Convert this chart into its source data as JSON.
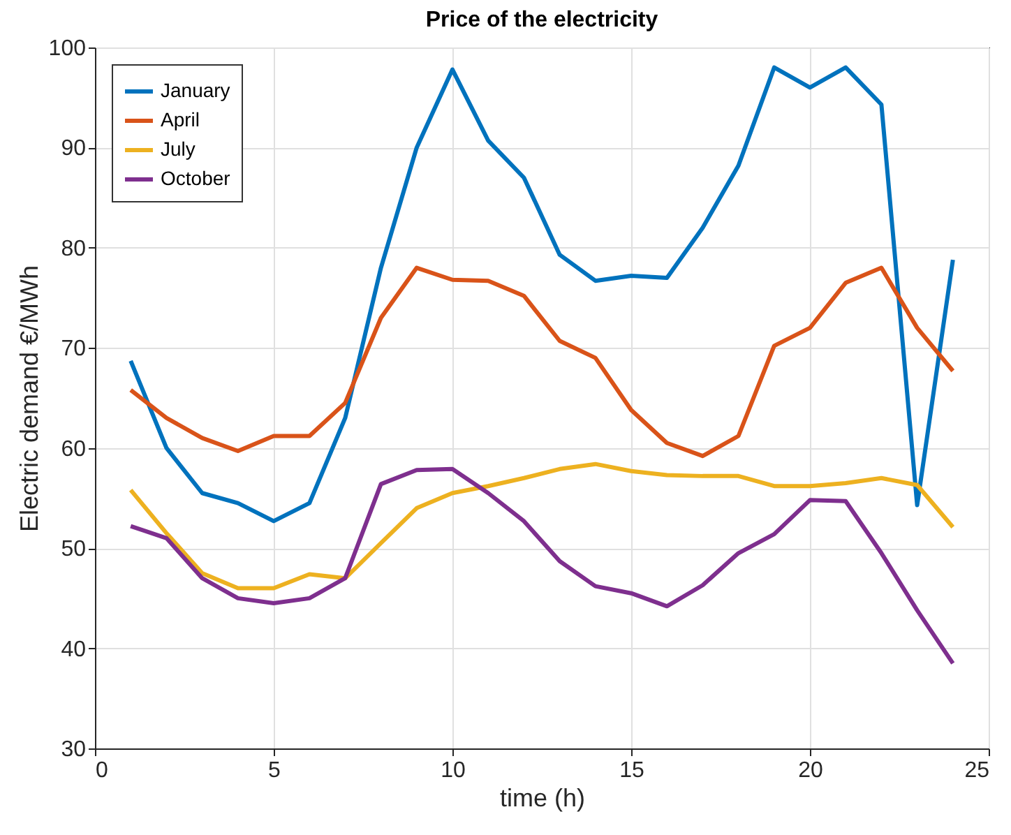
{
  "chart_data": {
    "type": "line",
    "title": "Price of the electricity",
    "xlabel": "time (h)",
    "ylabel": "Electric demand €/MWh",
    "x": [
      1,
      2,
      3,
      4,
      5,
      6,
      7,
      8,
      9,
      10,
      11,
      12,
      13,
      14,
      15,
      16,
      17,
      18,
      19,
      20,
      21,
      22,
      23,
      24
    ],
    "series": [
      {
        "name": "January",
        "color": "#0072bd",
        "values": [
          68.7,
          60,
          55.5,
          54.5,
          52.7,
          54.5,
          63,
          78,
          90,
          97.8,
          90.7,
          87,
          79.3,
          76.7,
          77.2,
          77,
          82,
          88.2,
          98,
          96,
          98,
          94.3,
          54.3,
          78.8
        ]
      },
      {
        "name": "April",
        "color": "#d95319",
        "values": [
          65.8,
          63,
          61,
          59.7,
          61.2,
          61.2,
          64.5,
          73,
          78,
          76.8,
          76.7,
          75.2,
          70.7,
          69,
          63.8,
          60.5,
          59.2,
          61.2,
          70.2,
          72,
          76.5,
          78,
          72,
          67.7
        ]
      },
      {
        "name": "July",
        "color": "#edb120",
        "values": [
          55.8,
          51.5,
          47.5,
          46,
          46,
          47.4,
          47,
          50.5,
          54,
          55.5,
          56.2,
          57,
          57.9,
          58.4,
          57.7,
          57.3,
          57.2,
          57.2,
          56.2,
          56.2,
          56.5,
          57,
          56.3,
          52.1
        ]
      },
      {
        "name": "October",
        "color": "#7e2f8e",
        "values": [
          52.2,
          51,
          47,
          45,
          44.5,
          45,
          47,
          56.4,
          57.8,
          57.9,
          55.5,
          52.7,
          48.7,
          46.2,
          45.5,
          44.2,
          46.3,
          49.5,
          51.4,
          54.8,
          54.7,
          49.5,
          43.8,
          38.5
        ]
      }
    ],
    "xlim": [
      0,
      25
    ],
    "xticks": [
      0,
      5,
      10,
      15,
      20,
      25
    ],
    "ylim": [
      30,
      100
    ],
    "yticks": [
      30,
      40,
      50,
      60,
      70,
      80,
      90,
      100
    ],
    "grid": true,
    "legend": "top left",
    "line_style": "solid"
  }
}
